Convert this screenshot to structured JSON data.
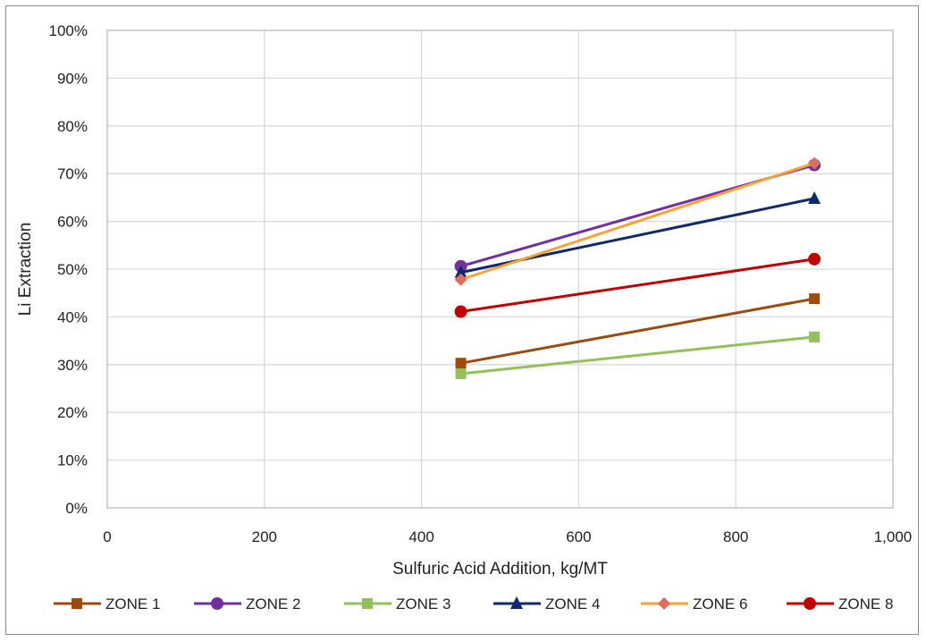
{
  "chart_data": {
    "type": "line",
    "title": "",
    "xlabel": "Sulfuric Acid Addition, kg/MT",
    "ylabel": "Li Extraction",
    "xlim": [
      0,
      1000
    ],
    "ylim": [
      0,
      100
    ],
    "x_ticks": [
      0,
      200,
      400,
      600,
      800,
      1000
    ],
    "x_tick_labels": [
      "0",
      "200",
      "400",
      "600",
      "800",
      "1,000"
    ],
    "y_ticks": [
      0,
      10,
      20,
      30,
      40,
      50,
      60,
      70,
      80,
      90,
      100
    ],
    "y_tick_labels": [
      "0%",
      "10%",
      "20%",
      "30%",
      "40%",
      "50%",
      "60%",
      "70%",
      "80%",
      "90%",
      "100%"
    ],
    "grid": true,
    "legend_position": "bottom",
    "series": [
      {
        "name": "ZONE 1",
        "color": "#9c4a0e",
        "marker": "square",
        "x": [
          450,
          900
        ],
        "y": [
          30.3,
          43.8
        ]
      },
      {
        "name": "ZONE 2",
        "color": "#7030a0",
        "marker": "circle",
        "x": [
          450,
          900
        ],
        "y": [
          50.6,
          71.8
        ]
      },
      {
        "name": "ZONE 3",
        "color": "#92c05a",
        "marker": "square",
        "x": [
          450,
          900
        ],
        "y": [
          28.1,
          35.8
        ]
      },
      {
        "name": "ZONE 4",
        "color": "#0f2a6b",
        "marker": "triangle",
        "x": [
          450,
          900
        ],
        "y": [
          49.3,
          64.8
        ]
      },
      {
        "name": "ZONE 6",
        "color": "#f8a23a",
        "marker": "diamond",
        "marker_color": "#d97060",
        "x": [
          450,
          900
        ],
        "y": [
          47.8,
          72.2
        ]
      },
      {
        "name": "ZONE 8",
        "color": "#c00000",
        "marker": "circle",
        "x": [
          450,
          900
        ],
        "y": [
          41.1,
          52.1
        ]
      }
    ]
  }
}
